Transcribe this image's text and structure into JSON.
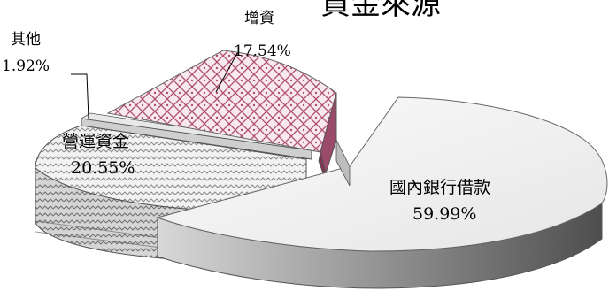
{
  "chart_data": {
    "type": "pie",
    "title": "資金來源",
    "slices": [
      {
        "label": "國內銀行借款",
        "value": 59.99,
        "display": "59.99%"
      },
      {
        "label": "增資",
        "value": 17.54,
        "display": "17.54%"
      },
      {
        "label": "其他",
        "value": 1.92,
        "display": "1.92%"
      },
      {
        "label": "營運資金",
        "value": 20.55,
        "display": "20.55%"
      }
    ]
  },
  "colors": {
    "bank_loan_light": "#f3f3f3",
    "bank_loan_dark": "#6e6e6e",
    "capital_increase": "#c98aa6",
    "other": "#cfcfcf",
    "working_capital": "#d9d9d9"
  }
}
